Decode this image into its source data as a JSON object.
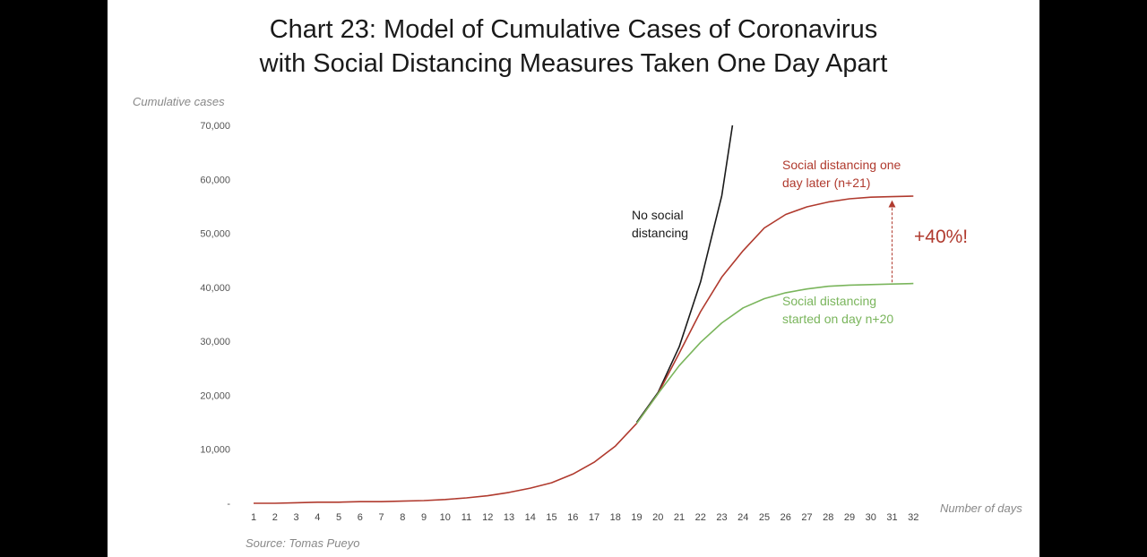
{
  "slide": {
    "background": "#ffffff",
    "frame": "#000000"
  },
  "chart_data": {
    "type": "line",
    "title_line1": "Chart 23: Model of Cumulative Cases of Coronavirus",
    "title_line2": "with Social Distancing Measures Taken One Day Apart",
    "ylabel": "Cumulative cases",
    "xlabel": "Number of days",
    "ylim": [
      0,
      70000
    ],
    "y_ticks": [
      "-",
      "10,000",
      "20,000",
      "30,000",
      "40,000",
      "50,000",
      "60,000",
      "70,000"
    ],
    "y_tick_values": [
      0,
      10000,
      20000,
      30000,
      40000,
      50000,
      60000,
      70000
    ],
    "x": [
      1,
      2,
      3,
      4,
      5,
      6,
      7,
      8,
      9,
      10,
      11,
      12,
      13,
      14,
      15,
      16,
      17,
      18,
      19,
      20,
      21,
      22,
      23,
      24,
      25,
      26,
      27,
      28,
      29,
      30,
      31,
      32
    ],
    "grid": false,
    "series": [
      {
        "id": "no_distancing",
        "color": "#1a1a1a",
        "x": [
          19,
          20,
          21,
          22,
          23,
          23.5
        ],
        "values": [
          15000,
          20500,
          29000,
          41000,
          57000,
          70000
        ]
      },
      {
        "id": "one_day_later",
        "color": "#b03a2e",
        "x": [
          1,
          2,
          3,
          4,
          5,
          6,
          7,
          8,
          9,
          10,
          11,
          12,
          13,
          14,
          15,
          16,
          17,
          18,
          19,
          20,
          21,
          22,
          23,
          24,
          25,
          26,
          27,
          28,
          29,
          30,
          31,
          32
        ],
        "values": [
          0,
          0,
          100,
          200,
          200,
          300,
          300,
          400,
          500,
          700,
          1000,
          1400,
          2000,
          2800,
          3800,
          5400,
          7600,
          10600,
          14800,
          20300,
          27800,
          35500,
          41900,
          46800,
          51000,
          53500,
          54900,
          55800,
          56400,
          56700,
          56800,
          56900
        ]
      },
      {
        "id": "started_day_20",
        "color": "#7ab55c",
        "x": [
          19,
          20,
          21,
          22,
          23,
          24,
          25,
          26,
          27,
          28,
          29,
          30,
          31,
          32
        ],
        "values": [
          14800,
          20300,
          25500,
          29800,
          33400,
          36200,
          37900,
          39000,
          39700,
          40200,
          40400,
          40500,
          40600,
          40700
        ]
      }
    ],
    "annotations": {
      "no_distancing": [
        "No social",
        "distancing"
      ],
      "one_day_later": [
        "Social distancing one",
        "day later (n+21)"
      ],
      "started_day_20": [
        "Social distancing",
        "started on day n+20"
      ],
      "increase": "+40%!",
      "increase_color": "#b03a2e",
      "source": "Source: Tomas Pueyo"
    }
  }
}
